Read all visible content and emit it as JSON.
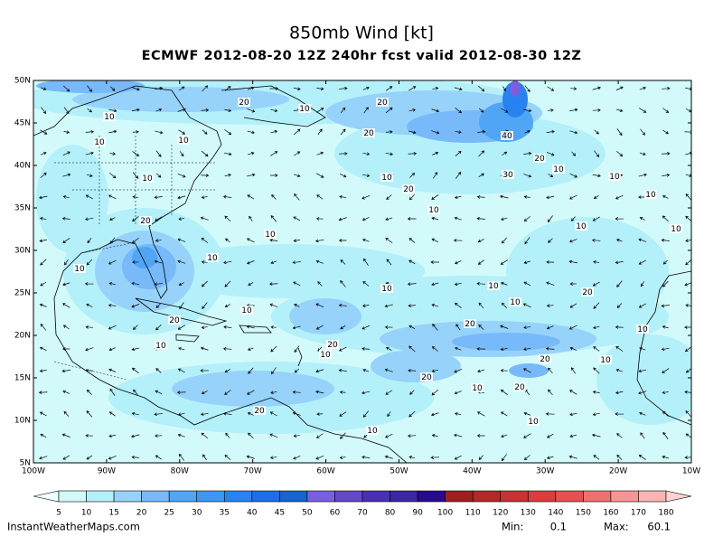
{
  "header": {
    "title": "850mb Wind [kt]",
    "subtitle": "ECMWF 2012-08-20 12Z 240hr fcst valid 2012-08-30 12Z"
  },
  "map": {
    "lat_labels": [
      "50N",
      "45N",
      "40N",
      "35N",
      "30N",
      "25N",
      "20N",
      "15N",
      "10N",
      "5N"
    ],
    "lon_labels": [
      "100W",
      "90W",
      "80W",
      "70W",
      "60W",
      "50W",
      "40W",
      "30W",
      "20W",
      "10W"
    ],
    "contour_labels": [
      20,
      10,
      20,
      20,
      40,
      20,
      30,
      10,
      10,
      10,
      10,
      10,
      20,
      10,
      10,
      10,
      10,
      10,
      10,
      20,
      10,
      10,
      10,
      10,
      10,
      10,
      20,
      20,
      10,
      20,
      20,
      10,
      10,
      20,
      10,
      20,
      20,
      10,
      20,
      10,
      10,
      10
    ]
  },
  "colorbar": {
    "labels": [
      5,
      10,
      15,
      20,
      25,
      30,
      35,
      40,
      45,
      50,
      60,
      70,
      80,
      90,
      100,
      110,
      120,
      130,
      140,
      150,
      160,
      170,
      180
    ],
    "below_color": "#f0ffff",
    "colors": [
      "#d2fafa",
      "#b4f0fa",
      "#96d2fa",
      "#78b9fa",
      "#50a5f5",
      "#3c97f5",
      "#2883f0",
      "#1e6eeb",
      "#1464d2",
      "#7860e0",
      "#6448c8",
      "#4b30b4",
      "#3c28a0",
      "#280a8c",
      "#a01e1e",
      "#b42828",
      "#c83232",
      "#dc3c3c",
      "#e65050",
      "#f07070",
      "#f59696",
      "#fab4b4"
    ],
    "above_color": "#ffd2d2"
  },
  "footer": {
    "source": "InstantWeatherMaps.com",
    "min_label": "Min:",
    "min": 0.1,
    "max_label": "Max:",
    "max": 60.1
  }
}
